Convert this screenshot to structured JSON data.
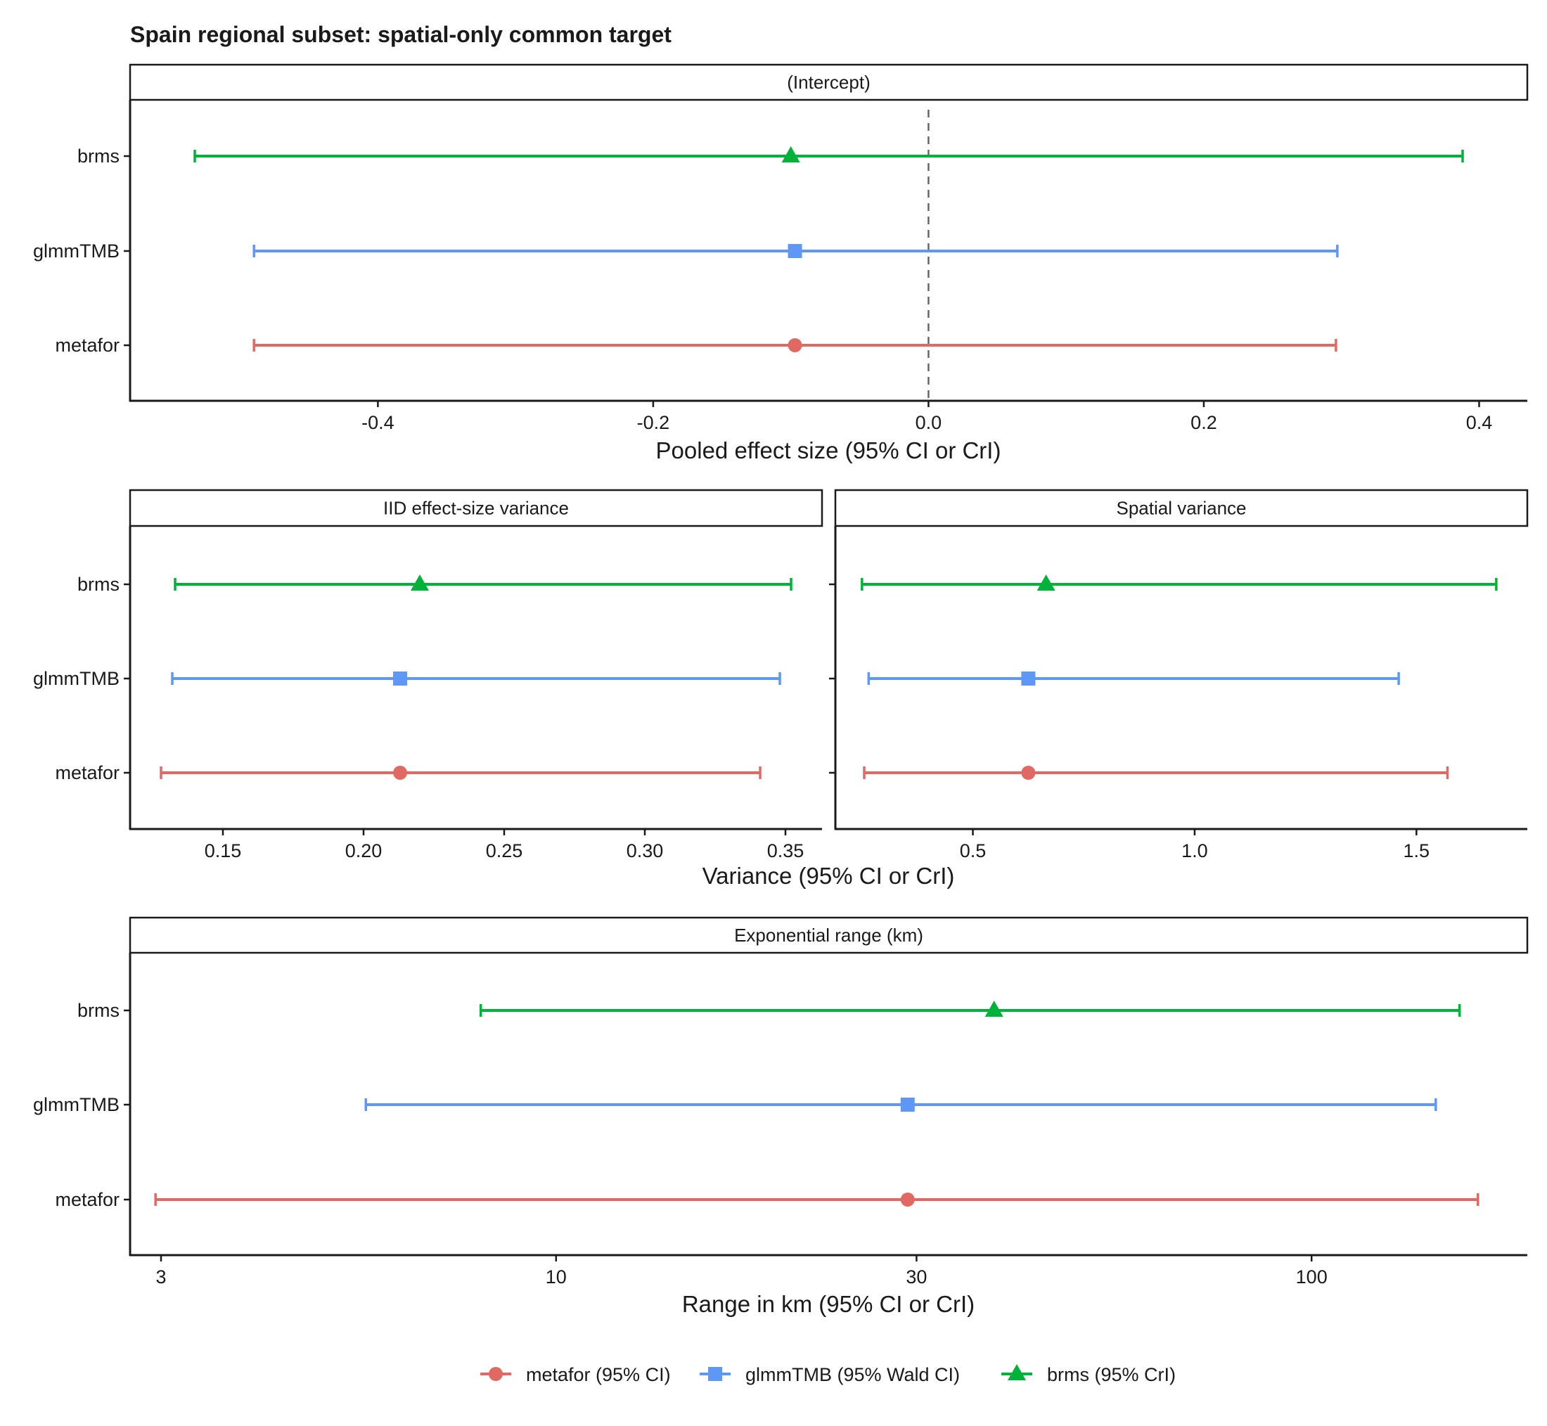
{
  "chart_data": {
    "type": "forest",
    "title": "Spain regional subset: spatial-only common target",
    "methods": [
      "brms",
      "glmmTMB",
      "metafor"
    ],
    "legend": {
      "placement": "bottom",
      "items": [
        {
          "key": "metafor",
          "label": "metafor (95% CI)",
          "color": "#E06A63",
          "shape": "circle"
        },
        {
          "key": "glmmTMB",
          "label": "glmmTMB (95% Wald CI)",
          "color": "#5E97F6",
          "shape": "square"
        },
        {
          "key": "brms",
          "label": "brms (95% CrI)",
          "color": "#00B13A",
          "shape": "triangle"
        }
      ]
    },
    "panels": [
      {
        "id": "intercept",
        "strip": "(Intercept)",
        "xlabel": "Pooled effect size (95% CI or CrI)",
        "scale": "linear",
        "xlim": [
          -0.58,
          0.435
        ],
        "ticks": [
          -0.4,
          -0.2,
          0.0,
          0.2,
          0.4
        ],
        "tick_labels": [
          "-0.4",
          "-0.2",
          "0.0",
          "0.2",
          "0.4"
        ],
        "reference_line": 0.0,
        "estimates": {
          "brms": {
            "est": -0.1,
            "lo": -0.533,
            "hi": 0.388
          },
          "glmmTMB": {
            "est": -0.097,
            "lo": -0.49,
            "hi": 0.297
          },
          "metafor": {
            "est": -0.097,
            "lo": -0.49,
            "hi": 0.296
          }
        }
      },
      {
        "id": "iid-variance",
        "strip": "IID effect-size variance",
        "xlabel": "Variance (95% CI or CrI)",
        "scale": "linear",
        "xlim": [
          0.117,
          0.363
        ],
        "ticks": [
          0.15,
          0.2,
          0.25,
          0.3,
          0.35
        ],
        "tick_labels": [
          "0.15",
          "0.20",
          "0.25",
          "0.30",
          "0.35"
        ],
        "estimates": {
          "brms": {
            "est": 0.22,
            "lo": 0.133,
            "hi": 0.352
          },
          "glmmTMB": {
            "est": 0.213,
            "lo": 0.132,
            "hi": 0.348
          },
          "metafor": {
            "est": 0.213,
            "lo": 0.128,
            "hi": 0.341
          }
        }
      },
      {
        "id": "spatial-variance",
        "strip": "Spatial variance",
        "scale": "linear",
        "xlim": [
          0.19,
          1.75
        ],
        "ticks": [
          0.5,
          1.0,
          1.5
        ],
        "tick_labels": [
          "0.5",
          "1.0",
          "1.5"
        ],
        "estimates": {
          "brms": {
            "est": 0.665,
            "lo": 0.25,
            "hi": 1.68
          },
          "glmmTMB": {
            "est": 0.625,
            "lo": 0.265,
            "hi": 1.46
          },
          "metafor": {
            "est": 0.625,
            "lo": 0.255,
            "hi": 1.57
          }
        }
      },
      {
        "id": "range",
        "strip": "Exponential range (km)",
        "xlabel": "Range in km (95% CI or CrI)",
        "scale": "log10",
        "xlim": [
          2.73,
          193
        ],
        "ticks": [
          3,
          10,
          30,
          100
        ],
        "tick_labels": [
          "3",
          "10",
          "30",
          "100"
        ],
        "estimates": {
          "brms": {
            "est": 38,
            "lo": 7.95,
            "hi": 157
          },
          "glmmTMB": {
            "est": 29.2,
            "lo": 5.6,
            "hi": 146
          },
          "metafor": {
            "est": 29.2,
            "lo": 2.95,
            "hi": 166
          }
        }
      }
    ]
  }
}
